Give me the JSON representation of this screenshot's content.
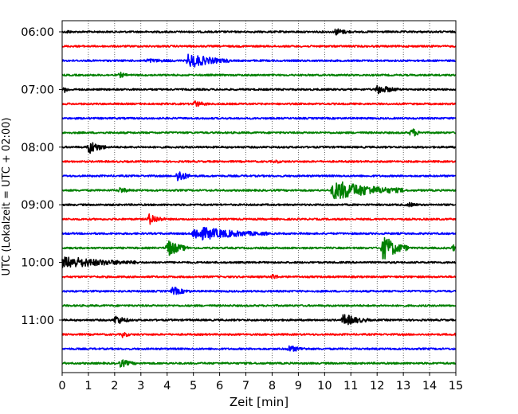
{
  "chart_data": {
    "type": "line",
    "chart_kind": "helicorder seismogram",
    "title": "",
    "xlabel": "Zeit  [min]",
    "ylabel": "UTC (Lokalzeit = UTC + 02:00)",
    "xlim": [
      0,
      15
    ],
    "x_ticks": [
      "0",
      "1",
      "2",
      "3",
      "4",
      "5",
      "6",
      "7",
      "8",
      "9",
      "10",
      "11",
      "12",
      "13",
      "14",
      "15"
    ],
    "y_ticks": [
      "06:00",
      "07:00",
      "08:00",
      "09:00",
      "10:00",
      "11:00"
    ],
    "grid": "vertical dotted lines at each minute",
    "line_colors": [
      "#000000",
      "#ff0000",
      "#0000ff",
      "#008000"
    ],
    "row_minutes": 15,
    "rows": [
      {
        "start": "06:00",
        "color": "#000000",
        "events": [
          {
            "x": 10.4,
            "amp": 3.5,
            "dur": 0.6
          },
          {
            "x": 0.2,
            "amp": 1.5,
            "dur": 0.2
          }
        ]
      },
      {
        "start": "06:15",
        "color": "#ff0000",
        "events": []
      },
      {
        "start": "06:30",
        "color": "#0000ff",
        "events": [
          {
            "x": 4.8,
            "amp": 7,
            "dur": 1.6
          },
          {
            "x": 3.2,
            "amp": 1.5,
            "dur": 1.2
          }
        ]
      },
      {
        "start": "06:45",
        "color": "#008000",
        "events": [
          {
            "x": 2.2,
            "amp": 2.5,
            "dur": 0.3
          }
        ]
      },
      {
        "start": "07:00",
        "color": "#000000",
        "events": [
          {
            "x": 12.0,
            "amp": 5,
            "dur": 0.8
          },
          {
            "x": 0.1,
            "amp": 3,
            "dur": 0.2
          }
        ]
      },
      {
        "start": "07:15",
        "color": "#ff0000",
        "events": [
          {
            "x": 5.0,
            "amp": 3,
            "dur": 0.6
          }
        ]
      },
      {
        "start": "07:30",
        "color": "#0000ff",
        "events": []
      },
      {
        "start": "07:45",
        "color": "#008000",
        "events": [
          {
            "x": 13.3,
            "amp": 5,
            "dur": 0.4
          }
        ]
      },
      {
        "start": "08:00",
        "color": "#000000",
        "events": [
          {
            "x": 1.0,
            "amp": 7,
            "dur": 0.7
          }
        ]
      },
      {
        "start": "08:15",
        "color": "#ff0000",
        "events": [
          {
            "x": 8.1,
            "amp": 1.5,
            "dur": 0.3
          }
        ]
      },
      {
        "start": "08:30",
        "color": "#0000ff",
        "events": [
          {
            "x": 4.4,
            "amp": 7,
            "dur": 0.5
          }
        ]
      },
      {
        "start": "08:45",
        "color": "#008000",
        "events": [
          {
            "x": 10.3,
            "amp": 10,
            "dur": 2.8
          },
          {
            "x": 2.2,
            "amp": 3,
            "dur": 0.4
          }
        ]
      },
      {
        "start": "09:00",
        "color": "#000000",
        "events": [
          {
            "x": 13.2,
            "amp": 2,
            "dur": 0.4
          }
        ]
      },
      {
        "start": "09:15",
        "color": "#ff0000",
        "events": [
          {
            "x": 3.3,
            "amp": 6,
            "dur": 0.6
          }
        ]
      },
      {
        "start": "09:30",
        "color": "#0000ff",
        "events": [
          {
            "x": 5.0,
            "amp": 7,
            "dur": 2.8
          }
        ]
      },
      {
        "start": "09:45",
        "color": "#008000",
        "events": [
          {
            "x": 4.0,
            "amp": 9,
            "dur": 0.8
          },
          {
            "x": 12.2,
            "amp": 13,
            "dur": 1.0
          },
          {
            "x": 14.9,
            "amp": 4,
            "dur": 0.1
          }
        ]
      },
      {
        "start": "10:00",
        "color": "#000000",
        "events": [
          {
            "x": 0.0,
            "amp": 6,
            "dur": 2.9
          }
        ]
      },
      {
        "start": "10:15",
        "color": "#ff0000",
        "events": [
          {
            "x": 8.0,
            "amp": 3,
            "dur": 0.3
          }
        ]
      },
      {
        "start": "10:30",
        "color": "#0000ff",
        "events": [
          {
            "x": 4.2,
            "amp": 4,
            "dur": 0.7
          }
        ]
      },
      {
        "start": "10:45",
        "color": "#008000",
        "events": []
      },
      {
        "start": "11:00",
        "color": "#000000",
        "events": [
          {
            "x": 2.0,
            "amp": 5,
            "dur": 0.6
          },
          {
            "x": 10.7,
            "amp": 6,
            "dur": 1.0
          }
        ]
      },
      {
        "start": "11:15",
        "color": "#ff0000",
        "events": [
          {
            "x": 2.3,
            "amp": 3,
            "dur": 0.3
          },
          {
            "x": 15.0,
            "amp": 2,
            "dur": 0.05
          }
        ]
      },
      {
        "start": "11:30",
        "color": "#0000ff",
        "events": [
          {
            "x": 8.6,
            "amp": 3,
            "dur": 0.8
          }
        ]
      },
      {
        "start": "11:45",
        "color": "#008000",
        "events": [
          {
            "x": 2.2,
            "amp": 4,
            "dur": 0.6
          }
        ]
      }
    ]
  }
}
